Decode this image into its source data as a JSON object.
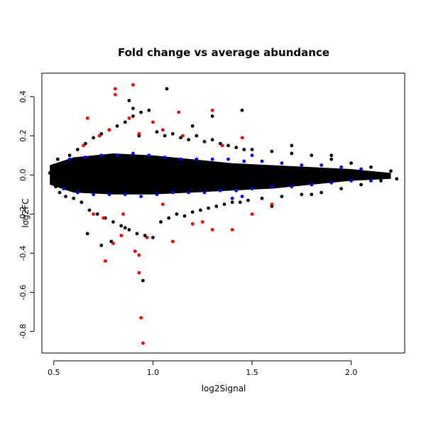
{
  "chart_data": {
    "type": "scatter",
    "title": "Fold change vs average abundance",
    "xlabel": "log2Signal",
    "ylabel": "log2FC",
    "xlim": [
      0.44,
      2.27
    ],
    "ylim": [
      -0.91,
      0.52
    ],
    "x_ticks": [
      0.5,
      1.0,
      1.5,
      2.0
    ],
    "x_tick_labels": [
      "0.5",
      "1.0",
      "1.5",
      "2.0"
    ],
    "y_ticks": [
      -0.8,
      -0.6,
      -0.4,
      -0.2,
      0.0,
      0.2,
      0.4
    ],
    "y_tick_labels": [
      "-0.8",
      "-0.6",
      "-0.4",
      "-0.2",
      "0.0",
      "0.2",
      "0.4"
    ],
    "grid": false,
    "legend": "none",
    "colors": {
      "black": "#000000",
      "blue": "#0000ff",
      "red": "#ff0000"
    },
    "series": [
      {
        "color_key": "black",
        "points": [
          [
            0.48,
            0.01
          ],
          [
            0.49,
            -0.03
          ],
          [
            0.5,
            0.04
          ],
          [
            0.51,
            -0.06
          ],
          [
            0.52,
            0.08
          ],
          [
            0.53,
            -0.09
          ],
          [
            0.55,
            0.06
          ],
          [
            0.56,
            -0.11
          ],
          [
            0.58,
            0.1
          ],
          [
            0.6,
            -0.12
          ],
          [
            0.62,
            0.13
          ],
          [
            0.64,
            -0.14
          ],
          [
            0.66,
            0.16
          ],
          [
            0.68,
            -0.18
          ],
          [
            0.7,
            0.19
          ],
          [
            0.72,
            -0.2
          ],
          [
            0.74,
            0.21
          ],
          [
            0.76,
            -0.22
          ],
          [
            0.78,
            0.23
          ],
          [
            0.8,
            -0.24
          ],
          [
            0.82,
            0.25
          ],
          [
            0.84,
            -0.26
          ],
          [
            0.86,
            0.27
          ],
          [
            0.88,
            -0.28
          ],
          [
            0.9,
            0.3
          ],
          [
            0.92,
            -0.3
          ],
          [
            0.94,
            0.32
          ],
          [
            0.96,
            -0.31
          ],
          [
            0.98,
            0.33
          ],
          [
            1.0,
            -0.32
          ],
          [
            1.02,
            0.22
          ],
          [
            1.04,
            -0.24
          ],
          [
            1.06,
            0.2
          ],
          [
            1.08,
            -0.22
          ],
          [
            1.1,
            0.21
          ],
          [
            1.12,
            -0.2
          ],
          [
            1.14,
            0.19
          ],
          [
            1.16,
            -0.21
          ],
          [
            1.18,
            0.18
          ],
          [
            1.2,
            -0.19
          ],
          [
            1.22,
            0.2
          ],
          [
            1.24,
            -0.18
          ],
          [
            1.26,
            0.17
          ],
          [
            1.28,
            -0.17
          ],
          [
            1.3,
            0.18
          ],
          [
            1.32,
            -0.16
          ],
          [
            1.34,
            0.16
          ],
          [
            1.36,
            -0.15
          ],
          [
            1.38,
            0.15
          ],
          [
            1.4,
            -0.14
          ],
          [
            1.42,
            0.14
          ],
          [
            1.44,
            -0.14
          ],
          [
            1.46,
            0.13
          ],
          [
            1.48,
            -0.13
          ],
          [
            1.5,
            0.13
          ],
          [
            1.55,
            -0.12
          ],
          [
            1.6,
            0.12
          ],
          [
            1.65,
            -0.11
          ],
          [
            1.7,
            0.11
          ],
          [
            1.75,
            -0.1
          ],
          [
            1.8,
            0.1
          ],
          [
            1.85,
            -0.09
          ],
          [
            1.9,
            0.08
          ],
          [
            1.95,
            -0.07
          ],
          [
            2.0,
            0.06
          ],
          [
            2.05,
            -0.05
          ],
          [
            2.1,
            0.04
          ],
          [
            2.15,
            -0.03
          ],
          [
            2.2,
            0.02
          ],
          [
            2.23,
            -0.02
          ],
          [
            0.95,
            -0.54
          ],
          [
            1.07,
            0.44
          ],
          [
            0.88,
            0.38
          ],
          [
            1.45,
            0.33
          ],
          [
            1.3,
            0.3
          ],
          [
            1.2,
            0.25
          ],
          [
            1.6,
            -0.16
          ],
          [
            1.7,
            0.15
          ],
          [
            1.8,
            -0.1
          ],
          [
            1.9,
            0.1
          ],
          [
            0.9,
            0.34
          ],
          [
            0.93,
            0.2
          ],
          [
            0.79,
            -0.34
          ],
          [
            0.67,
            -0.3
          ],
          [
            0.74,
            -0.36
          ],
          [
            0.86,
            -0.27
          ]
        ]
      },
      {
        "color_key": "blue",
        "points": [
          [
            0.55,
            -0.07
          ],
          [
            0.58,
            0.08
          ],
          [
            0.62,
            -0.09
          ],
          [
            0.66,
            0.09
          ],
          [
            0.7,
            -0.1
          ],
          [
            0.74,
            0.1
          ],
          [
            0.78,
            -0.1
          ],
          [
            0.82,
            0.1
          ],
          [
            0.86,
            -0.1
          ],
          [
            0.9,
            0.11
          ],
          [
            0.94,
            -0.11
          ],
          [
            0.98,
            0.1
          ],
          [
            1.02,
            -0.1
          ],
          [
            1.06,
            0.09
          ],
          [
            1.1,
            -0.09
          ],
          [
            1.14,
            0.08
          ],
          [
            1.18,
            -0.09
          ],
          [
            1.22,
            0.08
          ],
          [
            1.26,
            -0.09
          ],
          [
            1.3,
            0.08
          ],
          [
            1.34,
            -0.08
          ],
          [
            1.38,
            0.08
          ],
          [
            1.42,
            -0.08
          ],
          [
            1.46,
            0.07
          ],
          [
            1.5,
            -0.07
          ],
          [
            1.55,
            0.07
          ],
          [
            1.6,
            -0.06
          ],
          [
            1.65,
            0.06
          ],
          [
            1.7,
            -0.06
          ],
          [
            1.75,
            0.05
          ],
          [
            1.8,
            -0.05
          ],
          [
            1.85,
            0.05
          ],
          [
            1.9,
            -0.04
          ],
          [
            1.95,
            0.04
          ],
          [
            2.0,
            -0.03
          ],
          [
            2.05,
            0.03
          ],
          [
            2.1,
            -0.03
          ],
          [
            1.4,
            -0.12
          ],
          [
            1.5,
            0.1
          ],
          [
            1.45,
            -0.11
          ]
        ]
      },
      {
        "color_key": "red",
        "points": [
          [
            0.81,
            0.44
          ],
          [
            0.9,
            0.46
          ],
          [
            0.81,
            0.41
          ],
          [
            0.67,
            0.29
          ],
          [
            0.88,
            0.29
          ],
          [
            1.0,
            0.27
          ],
          [
            1.13,
            0.32
          ],
          [
            1.3,
            0.33
          ],
          [
            1.05,
            0.23
          ],
          [
            0.78,
            0.23
          ],
          [
            0.73,
            0.2
          ],
          [
            0.93,
            0.21
          ],
          [
            1.45,
            0.19
          ],
          [
            0.95,
            -0.86
          ],
          [
            0.94,
            -0.73
          ],
          [
            0.76,
            -0.44
          ],
          [
            0.93,
            -0.5
          ],
          [
            0.91,
            -0.39
          ],
          [
            0.93,
            -0.41
          ],
          [
            0.84,
            -0.31
          ],
          [
            1.1,
            -0.34
          ],
          [
            0.97,
            -0.32
          ],
          [
            0.8,
            -0.35
          ],
          [
            1.2,
            -0.25
          ],
          [
            1.3,
            -0.28
          ],
          [
            1.5,
            -0.2
          ],
          [
            0.7,
            -0.2
          ],
          [
            0.65,
            0.15
          ],
          [
            1.4,
            -0.28
          ],
          [
            1.15,
            0.2
          ],
          [
            1.05,
            -0.15
          ],
          [
            1.35,
            0.15
          ],
          [
            0.85,
            -0.2
          ],
          [
            0.75,
            -0.22
          ],
          [
            1.25,
            -0.24
          ],
          [
            1.6,
            -0.15
          ]
        ]
      }
    ]
  }
}
